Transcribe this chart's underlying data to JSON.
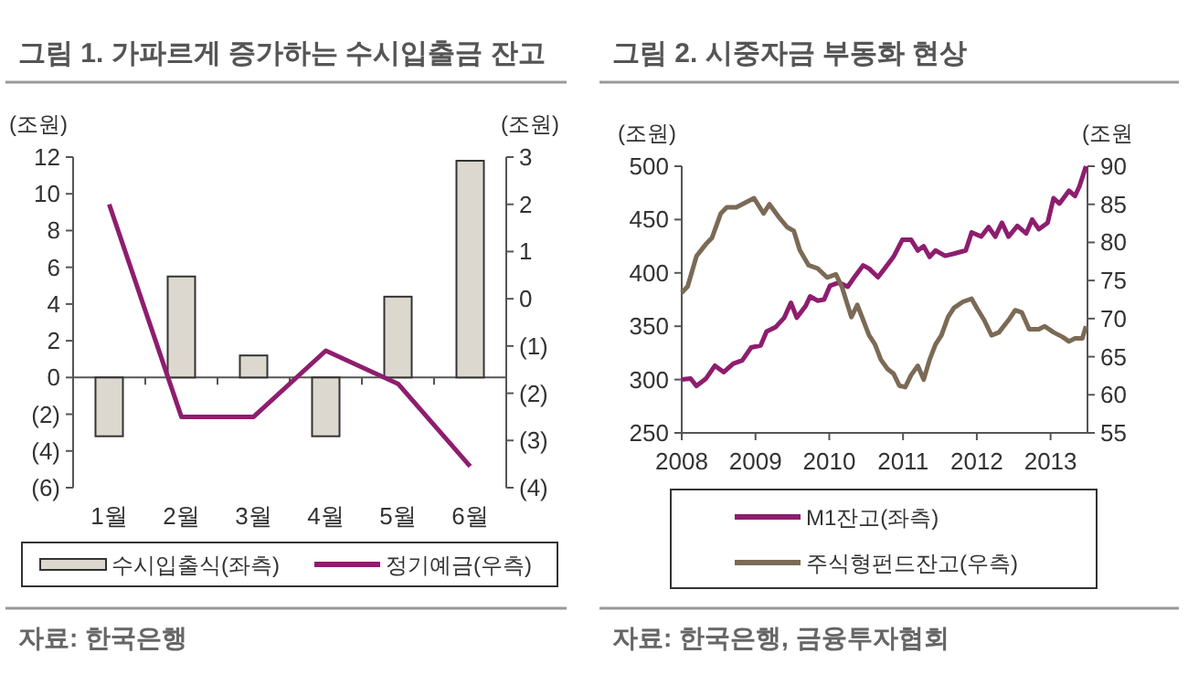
{
  "chart_data": [
    {
      "type": "bar",
      "title": "그림 1. 가파르게 증가하는 수시입출금 잔고",
      "ylabel": "(조원)",
      "y2label": "(조원)",
      "categories": [
        "1월",
        "2월",
        "3월",
        "4월",
        "5월",
        "6월"
      ],
      "series": [
        {
          "name": "수시입출식(좌측)",
          "color": "#ddd8cf",
          "values": [
            -3.2,
            5.5,
            1.2,
            -3.2,
            4.4,
            11.8
          ]
        },
        {
          "name": "정기예금(우측)",
          "type": "line",
          "axis": "y2",
          "color": "#8e1d6e",
          "values": [
            2.0,
            -2.5,
            -2.5,
            -1.1,
            -1.8,
            -3.55
          ]
        }
      ],
      "ylim": [
        -6,
        12
      ],
      "yticks": [
        {
          "value": -6,
          "label": "(6)"
        },
        {
          "value": -4,
          "label": "(4)"
        },
        {
          "value": -2,
          "label": "(2)"
        },
        0,
        2,
        4,
        6,
        8,
        10,
        12
      ],
      "y2lim": [
        -4,
        3
      ],
      "y2ticks": [
        {
          "value": -4,
          "label": "(4)"
        },
        {
          "value": -3,
          "label": "(3)"
        },
        {
          "value": -2,
          "label": "(2)"
        },
        {
          "value": -1,
          "label": "(1)"
        },
        0,
        1,
        2,
        3
      ],
      "legend": "bottom",
      "marker": "none",
      "annotations": [
        "자료: 한국은행"
      ]
    },
    {
      "type": "line",
      "title": "그림 2. 시중자금 부동화 현상",
      "ylabel": "(조원)",
      "y2label": "(조원",
      "series": [
        {
          "name": "M1잔고(좌측)",
          "color": "#8e1d6e",
          "x": [
            2008.0,
            2008.12,
            2008.2,
            2008.33,
            2008.45,
            2008.57,
            2008.7,
            2008.82,
            2008.94,
            2009.07,
            2009.15,
            2009.27,
            2009.39,
            2009.48,
            2009.56,
            2009.68,
            2009.74,
            2009.84,
            2009.93,
            2010.01,
            2010.13,
            2010.25,
            2010.34,
            2010.46,
            2010.54,
            2010.66,
            2010.75,
            2010.87,
            2010.99,
            2011.11,
            2011.2,
            2011.28,
            2011.36,
            2011.44,
            2011.57,
            2011.69,
            2011.85,
            2011.93,
            2012.06,
            2012.16,
            2012.25,
            2012.34,
            2012.43,
            2012.55,
            2012.67,
            2012.75,
            2012.84,
            2012.96,
            2013.04,
            2013.12,
            2013.25,
            2013.33,
            2013.39,
            2013.48
          ],
          "values": [
            300,
            301,
            294,
            301,
            313,
            307,
            315,
            318,
            330,
            332,
            345,
            349,
            358,
            372,
            358,
            369,
            378,
            374,
            375,
            388,
            391,
            387,
            396,
            407,
            404,
            396,
            404,
            415,
            431,
            431,
            421,
            425,
            415,
            421,
            416,
            418,
            421,
            438,
            434,
            443,
            434,
            447,
            434,
            444,
            437,
            450,
            441,
            447,
            470,
            465,
            477,
            472,
            481,
            500
          ]
        },
        {
          "name": "주식형펀드잔고(우측)",
          "axis": "y2",
          "color": "#7b6a55",
          "x": [
            2008.0,
            2008.08,
            2008.2,
            2008.33,
            2008.41,
            2008.53,
            2008.61,
            2008.74,
            2008.86,
            2008.98,
            2009.11,
            2009.19,
            2009.31,
            2009.43,
            2009.52,
            2009.6,
            2009.72,
            2009.84,
            2009.97,
            2010.09,
            2010.17,
            2010.3,
            2010.38,
            2010.46,
            2010.54,
            2010.62,
            2010.7,
            2010.79,
            2010.87,
            2010.95,
            2011.03,
            2011.11,
            2011.2,
            2011.28,
            2011.36,
            2011.44,
            2011.52,
            2011.61,
            2011.69,
            2011.81,
            2011.93,
            2012.0,
            2012.1,
            2012.2,
            2012.3,
            2012.43,
            2012.52,
            2012.61,
            2012.71,
            2012.84,
            2012.92,
            2013.04,
            2013.16,
            2013.25,
            2013.33,
            2013.43,
            2013.48
          ],
          "values": [
            73.4,
            74.2,
            78.2,
            79.8,
            80.6,
            83.8,
            84.6,
            84.6,
            85.2,
            85.8,
            83.8,
            85.0,
            83.4,
            82.0,
            81.5,
            79.0,
            77.0,
            76.6,
            75.4,
            75.8,
            74.2,
            70.2,
            71.8,
            69.8,
            67.8,
            66.6,
            64.6,
            63.4,
            62.8,
            61.2,
            61.0,
            62.6,
            63.8,
            62.0,
            64.6,
            66.6,
            67.8,
            70.2,
            71.4,
            72.2,
            72.6,
            71.4,
            69.8,
            67.8,
            68.2,
            69.8,
            71.1,
            70.8,
            68.6,
            68.6,
            69.0,
            68.2,
            67.6,
            67.0,
            67.4,
            67.4,
            69.0
          ]
        }
      ],
      "xlim": [
        2008,
        2013.5
      ],
      "xticks": [
        2008,
        2009,
        2010,
        2011,
        2012,
        2013
      ],
      "ylim": [
        250,
        500
      ],
      "yticks": [
        250,
        300,
        350,
        400,
        450,
        500
      ],
      "y2lim": [
        55,
        90
      ],
      "y2ticks": [
        55,
        60,
        65,
        70,
        75,
        80,
        85,
        90
      ],
      "legend": "bottom",
      "grid": false,
      "marker": "none",
      "annotations": [
        "자료: 한국은행, 금융투자협회"
      ]
    }
  ]
}
